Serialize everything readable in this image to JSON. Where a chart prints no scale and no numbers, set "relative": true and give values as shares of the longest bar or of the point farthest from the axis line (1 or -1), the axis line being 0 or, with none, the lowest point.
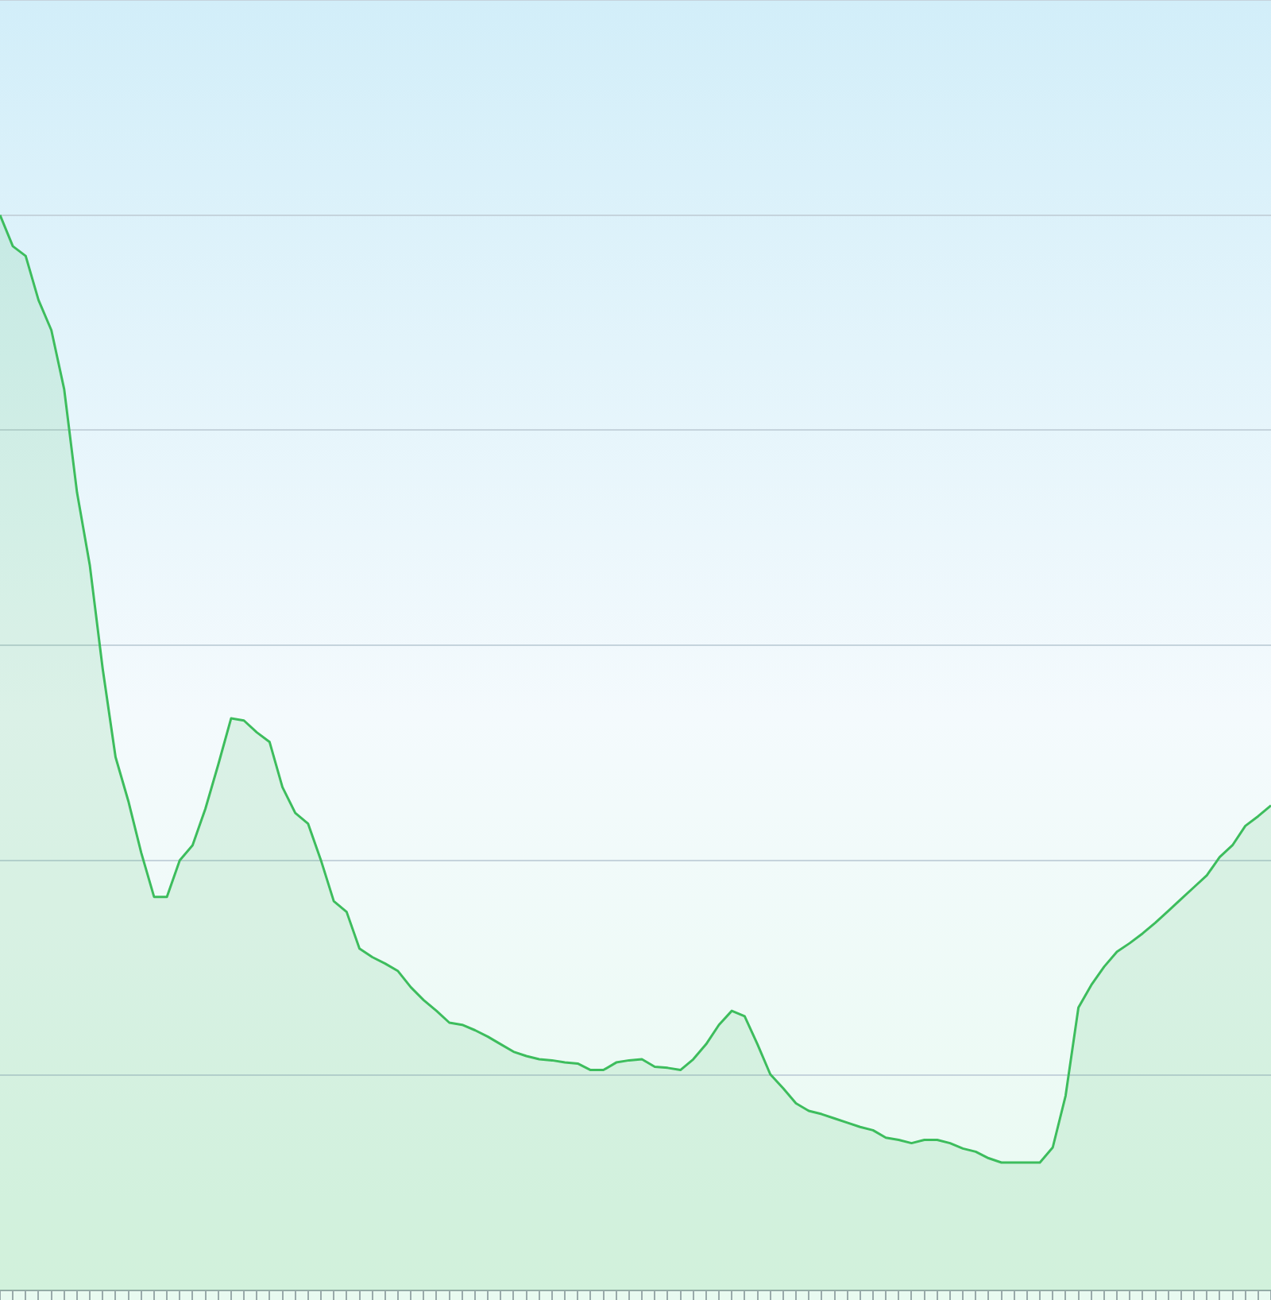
{
  "chart_data": {
    "type": "area",
    "relative": true,
    "grid": "y",
    "color": "#3dbd5d",
    "categories": [
      null,
      null,
      null,
      null,
      null,
      null,
      null,
      null,
      null,
      null,
      null,
      null,
      null,
      null,
      null,
      null,
      null,
      null,
      null,
      null,
      null,
      null,
      null,
      null,
      null,
      null,
      null,
      null,
      null,
      null,
      null,
      null,
      null,
      null,
      null,
      null,
      null,
      null,
      null,
      null,
      null,
      null,
      null,
      null,
      null,
      null,
      null,
      null,
      null,
      null,
      null,
      null,
      null,
      null,
      null,
      null,
      null,
      null,
      null,
      null,
      null,
      null,
      null,
      null,
      null,
      null,
      null,
      null,
      null,
      null,
      null,
      null,
      null,
      null,
      null,
      null,
      null,
      null,
      null,
      null,
      null,
      null,
      null,
      null,
      null,
      null,
      null,
      null,
      null,
      null,
      null,
      null,
      null,
      null,
      null,
      null,
      null,
      null,
      null,
      null
    ],
    "values": [
      1.0,
      0.971,
      0.962,
      0.921,
      0.893,
      0.838,
      0.742,
      0.674,
      0.578,
      0.496,
      0.455,
      0.407,
      0.366,
      0.366,
      0.4,
      0.414,
      0.448,
      0.489,
      0.532,
      0.53,
      0.519,
      0.51,
      0.468,
      0.444,
      0.434,
      0.4,
      0.362,
      0.352,
      0.318,
      0.31,
      0.304,
      0.297,
      0.282,
      0.27,
      0.26,
      0.249,
      0.247,
      0.242,
      0.236,
      0.229,
      0.222,
      0.218,
      0.215,
      0.214,
      0.212,
      0.211,
      0.205,
      0.205,
      0.212,
      0.214,
      0.215,
      0.208,
      0.207,
      0.205,
      0.215,
      0.229,
      0.247,
      0.26,
      0.255,
      0.229,
      0.201,
      0.188,
      0.174,
      0.167,
      0.164,
      0.16,
      0.156,
      0.152,
      0.149,
      0.142,
      0.14,
      0.137,
      0.14,
      0.14,
      0.137,
      0.132,
      0.129,
      0.123,
      0.119,
      0.119,
      0.119,
      0.119,
      0.133,
      0.181,
      0.263,
      0.284,
      0.301,
      0.315,
      0.323,
      0.332,
      0.342,
      0.353,
      0.364,
      0.375,
      0.386,
      0.403,
      0.414,
      0.432,
      0.441,
      0.451
    ]
  }
}
